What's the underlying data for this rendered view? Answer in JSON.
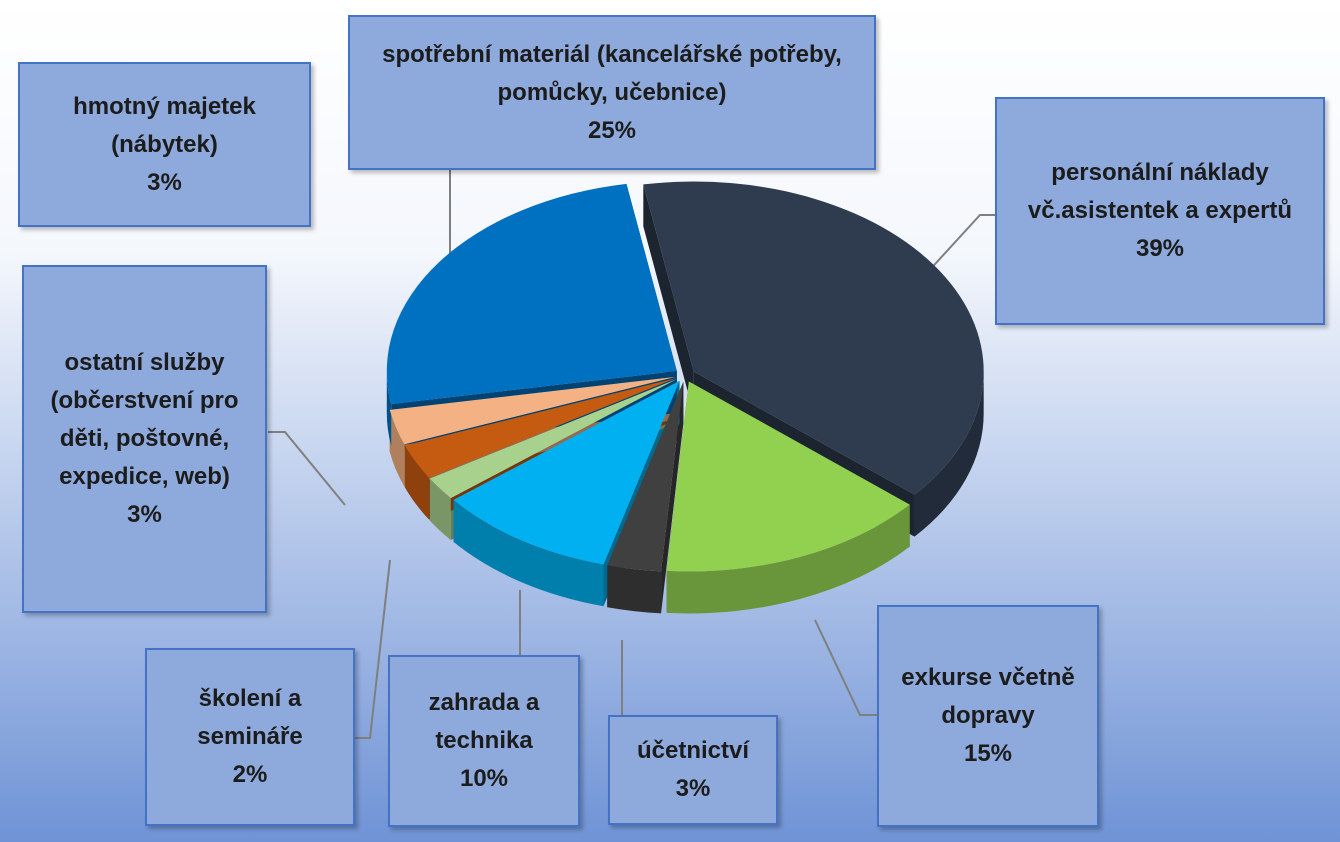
{
  "chart_data": {
    "type": "pie",
    "categories": [
      "personální náklady vč.asistentek a expertů",
      "exkurse včetně dopravy",
      "účetnictví",
      "zahrada a technika",
      "školení a semináře",
      "ostatní služby (občerstvení pro děti, poštovné, expedice, web)",
      "hmotný majetek (nábytek)",
      "spotřební materiál (kancelářské potřeby, pomůcky, učebnice)"
    ],
    "values": [
      39,
      15,
      3,
      10,
      2,
      3,
      3,
      25
    ],
    "value_labels": [
      "39%",
      "15%",
      "3%",
      "10%",
      "2%",
      "3%",
      "3%",
      "25%"
    ],
    "colors": [
      "#2f3c50",
      "#92d050",
      "#404040",
      "#00b0f0",
      "#a9d18e",
      "#c55a11",
      "#f4b183",
      "#0070c0"
    ]
  }
}
